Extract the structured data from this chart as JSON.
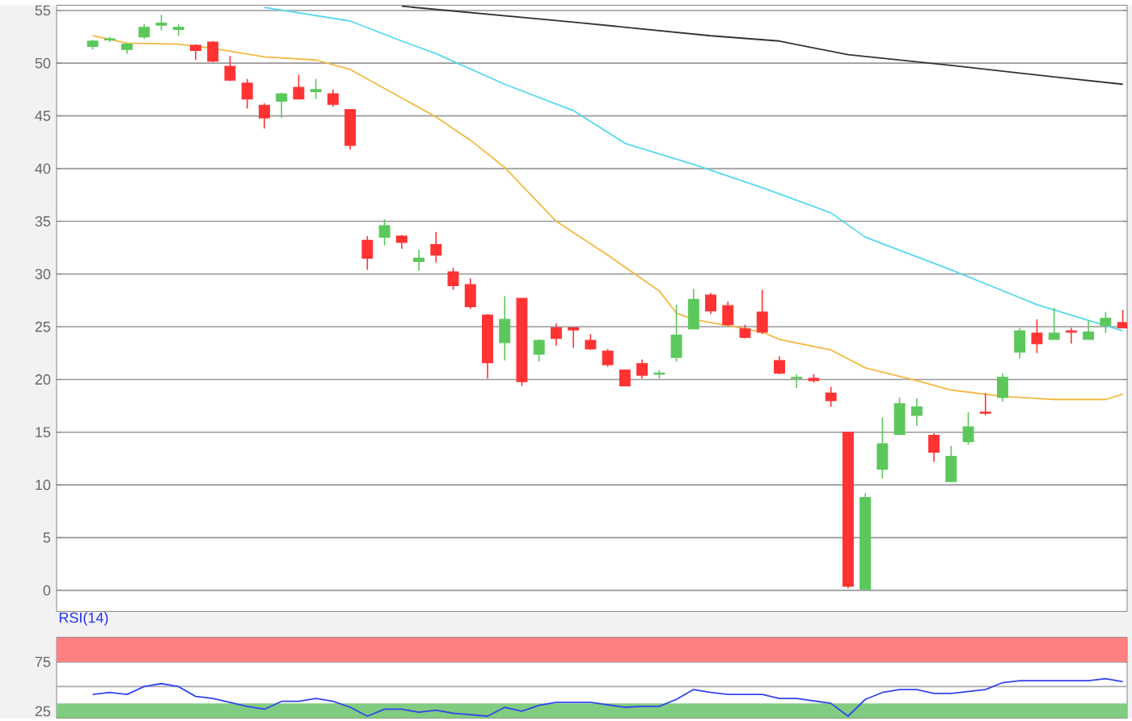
{
  "chart_data": [
    {
      "type": "candlestick",
      "categories": [
        null,
        null,
        null,
        null,
        null,
        null,
        null,
        null,
        null,
        null,
        null,
        null,
        null,
        null,
        null,
        null,
        null,
        null,
        null,
        null,
        null,
        null,
        null,
        null,
        null,
        null,
        null,
        null,
        null,
        null,
        null,
        null,
        null,
        null,
        null,
        null,
        null,
        null,
        null,
        null,
        null,
        null,
        null,
        null,
        null,
        null,
        null,
        null,
        null,
        null,
        null,
        null,
        null,
        null,
        null,
        null,
        null,
        null,
        null,
        null,
        null
      ],
      "ohlc": [
        [
          51.6,
          52.2,
          51.3,
          52.1
        ],
        [
          52.2,
          52.5,
          52.0,
          52.3
        ],
        [
          51.3,
          51.9,
          50.9,
          51.8
        ],
        [
          52.5,
          53.7,
          52.3,
          53.4
        ],
        [
          53.6,
          54.6,
          53.1,
          53.8
        ],
        [
          53.2,
          53.7,
          52.6,
          53.4
        ],
        [
          51.7,
          51.8,
          50.3,
          51.2
        ],
        [
          52.0,
          52.1,
          50.1,
          50.2
        ],
        [
          49.7,
          50.7,
          48.3,
          48.4
        ],
        [
          48.1,
          48.5,
          45.7,
          46.6
        ],
        [
          46.0,
          46.2,
          43.8,
          44.8
        ],
        [
          46.4,
          47.2,
          44.8,
          47.1
        ],
        [
          47.7,
          48.9,
          46.6,
          46.6
        ],
        [
          47.3,
          48.5,
          46.6,
          47.5
        ],
        [
          47.1,
          47.5,
          45.9,
          46.1
        ],
        [
          45.6,
          45.6,
          41.8,
          42.2
        ],
        [
          33.2,
          33.6,
          30.4,
          31.5
        ],
        [
          33.5,
          35.2,
          32.7,
          34.6
        ],
        [
          33.6,
          33.7,
          32.4,
          33.0
        ],
        [
          31.2,
          32.3,
          30.3,
          31.5
        ],
        [
          32.8,
          34.0,
          31.1,
          31.8
        ],
        [
          30.2,
          30.6,
          28.5,
          28.9
        ],
        [
          29.0,
          29.6,
          26.7,
          26.9
        ],
        [
          26.1,
          26.2,
          20.1,
          21.6
        ],
        [
          23.5,
          27.9,
          21.8,
          25.7
        ],
        [
          27.7,
          27.7,
          19.4,
          19.8
        ],
        [
          22.4,
          23.8,
          21.7,
          23.7
        ],
        [
          24.9,
          25.3,
          23.2,
          23.9
        ],
        [
          24.9,
          24.9,
          23.0,
          24.7
        ],
        [
          23.7,
          24.3,
          22.8,
          22.9
        ],
        [
          22.7,
          22.9,
          21.2,
          21.4
        ],
        [
          20.9,
          20.9,
          19.4,
          19.4
        ],
        [
          21.5,
          21.9,
          20.1,
          20.4
        ],
        [
          20.5,
          20.9,
          20.1,
          20.6
        ],
        [
          22.1,
          27.1,
          21.7,
          24.2
        ],
        [
          24.8,
          28.6,
          24.8,
          27.6
        ],
        [
          28.0,
          28.2,
          26.2,
          26.5
        ],
        [
          27.0,
          27.4,
          25.1,
          25.2
        ],
        [
          24.8,
          25.2,
          23.9,
          24.0
        ],
        [
          26.4,
          28.5,
          24.3,
          24.5
        ],
        [
          21.8,
          22.2,
          20.5,
          20.6
        ],
        [
          20.1,
          20.5,
          19.2,
          20.2
        ],
        [
          20.1,
          20.5,
          19.7,
          19.9
        ],
        [
          18.7,
          19.3,
          17.4,
          18.0
        ],
        [
          15.0,
          15.0,
          0.2,
          0.4
        ],
        [
          0.1,
          9.2,
          0.1,
          8.8
        ],
        [
          11.5,
          16.4,
          10.6,
          13.9
        ],
        [
          14.8,
          18.3,
          14.8,
          17.7
        ],
        [
          16.6,
          18.2,
          15.6,
          17.4
        ],
        [
          14.7,
          14.9,
          12.2,
          13.1
        ],
        [
          10.3,
          13.7,
          10.3,
          12.7
        ],
        [
          14.1,
          16.9,
          13.8,
          15.5
        ],
        [
          16.9,
          18.7,
          16.6,
          16.8
        ],
        [
          18.3,
          20.6,
          17.9,
          20.2
        ],
        [
          22.6,
          24.9,
          22.0,
          24.6
        ],
        [
          24.4,
          25.7,
          22.5,
          23.4
        ],
        [
          23.8,
          26.8,
          23.8,
          24.4
        ],
        [
          24.6,
          24.9,
          23.4,
          24.5
        ],
        [
          23.8,
          25.6,
          23.8,
          24.5
        ],
        [
          25.1,
          26.4,
          24.4,
          25.8
        ],
        [
          25.4,
          26.6,
          24.9,
          24.9
        ]
      ],
      "series": [
        {
          "type": "line",
          "color": "#f5b942",
          "values": [
            52.6,
            null,
            51.9,
            null,
            null,
            51.8,
            null,
            51.4,
            null,
            null,
            50.6,
            null,
            null,
            50.3,
            null,
            49.4,
            null,
            null,
            46.7,
            null,
            44.9,
            null,
            42.7,
            null,
            40.1,
            null,
            null,
            35.0,
            null,
            null,
            31.8,
            null,
            null,
            28.4,
            26.3,
            25.7,
            null,
            25.1,
            null,
            24.5,
            23.8,
            null,
            null,
            22.8,
            null,
            21.1,
            null,
            null,
            19.9,
            null,
            19.0,
            null,
            null,
            18.4,
            null,
            null,
            18.1,
            null,
            null,
            18.1,
            18.6
          ]
        },
        {
          "type": "line",
          "color": "#55d8f0",
          "values": [
            null,
            null,
            null,
            null,
            null,
            null,
            null,
            null,
            null,
            null,
            55.3,
            null,
            null,
            null,
            null,
            54.0,
            null,
            null,
            52.1,
            null,
            50.9,
            null,
            null,
            null,
            48.0,
            null,
            null,
            null,
            45.5,
            null,
            null,
            42.4,
            null,
            null,
            null,
            40.4,
            null,
            null,
            null,
            38.2,
            null,
            null,
            null,
            35.8,
            null,
            33.5,
            null,
            null,
            null,
            null,
            30.4,
            null,
            null,
            null,
            null,
            27.1,
            null,
            null,
            null,
            25.1,
            24.6
          ]
        },
        {
          "type": "line",
          "color": "#333333",
          "values": [
            null,
            null,
            null,
            null,
            null,
            null,
            null,
            null,
            null,
            null,
            null,
            null,
            null,
            null,
            null,
            null,
            null,
            null,
            55.4,
            null,
            null,
            null,
            null,
            null,
            null,
            null,
            null,
            null,
            53.9,
            null,
            null,
            null,
            null,
            null,
            null,
            null,
            52.6,
            null,
            null,
            null,
            52.1,
            null,
            null,
            null,
            50.8,
            null,
            null,
            null,
            null,
            null,
            49.8,
            null,
            null,
            null,
            null,
            null,
            48.7,
            null,
            null,
            null,
            48.0
          ]
        }
      ],
      "ylim": [
        -2,
        55.5
      ],
      "yticks": [
        0,
        5,
        10,
        15,
        20,
        25,
        30,
        35,
        40,
        45,
        50,
        55
      ],
      "grid": "y",
      "tick_labels": "y"
    },
    {
      "type": "line",
      "title": "RSI(14)",
      "categories": [
        null,
        null,
        null,
        null,
        null,
        null,
        null,
        null,
        null,
        null,
        null,
        null,
        null,
        null,
        null,
        null,
        null,
        null,
        null,
        null,
        null,
        null,
        null,
        null,
        null,
        null,
        null,
        null,
        null,
        null,
        null,
        null,
        null,
        null,
        null,
        null,
        null,
        null,
        null,
        null,
        null,
        null,
        null,
        null,
        null,
        null,
        null,
        null,
        null,
        null,
        null,
        null,
        null,
        null,
        null,
        null,
        null,
        null,
        null,
        null,
        null
      ],
      "series": [
        {
          "color": "#3344ee",
          "values": [
            42,
            44,
            42,
            50,
            53,
            50,
            40,
            38,
            null,
            30,
            27,
            35,
            35,
            38,
            35,
            29,
            20,
            27,
            27,
            24,
            26,
            23,
            null,
            20,
            29,
            25,
            31,
            34,
            null,
            34,
            null,
            29,
            30,
            30,
            37,
            47,
            44,
            42,
            null,
            42,
            38,
            38,
            null,
            33,
            20,
            37,
            44,
            47,
            47,
            43,
            43,
            null,
            47,
            54,
            56,
            null,
            null,
            null,
            56,
            58,
            55
          ]
        }
      ],
      "ylim": [
        18,
        100
      ],
      "yticks": [
        25,
        75
      ],
      "grid": "y",
      "tick_labels": "y",
      "bands": [
        {
          "axis": "y",
          "from": 75,
          "to": 100,
          "color": "#ff8080"
        },
        {
          "axis": "y",
          "from": 18,
          "to": 33,
          "color": "#80cc80"
        }
      ],
      "ref_lines": [
        {
          "axis": "y",
          "value": 50,
          "color": "#aaaaaa"
        }
      ]
    }
  ]
}
